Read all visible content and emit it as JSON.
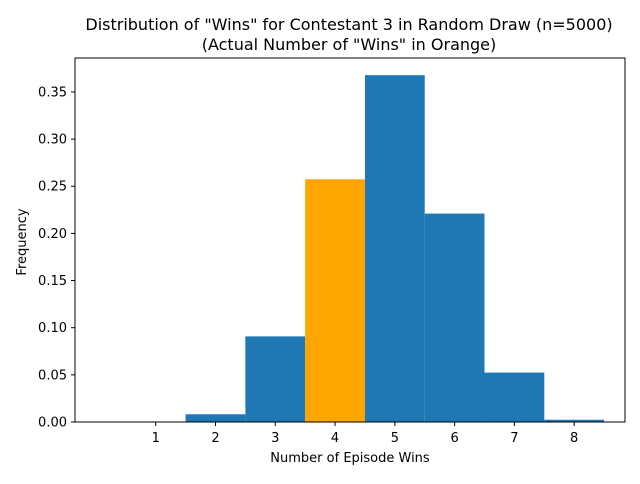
{
  "chart_data": {
    "type": "bar",
    "title_lines": [
      "Distribution of \"Wins\" for Contestant 3 in Random Draw (n=5000)",
      "(Actual Number of \"Wins\" in Orange)"
    ],
    "xlabel": "Number of Episode Wins",
    "ylabel": "Frequency",
    "categories": [
      1,
      2,
      3,
      4,
      5,
      6,
      7,
      8
    ],
    "values": [
      0.0,
      0.0082,
      0.0908,
      0.2574,
      0.3678,
      0.221,
      0.0524,
      0.0024
    ],
    "highlight_category": 4,
    "bar_width": 1.0,
    "xlim": [
      -0.35,
      8.85
    ],
    "ylim": [
      0,
      0.386
    ],
    "x_ticks": [
      "1",
      "2",
      "3",
      "4",
      "5",
      "6",
      "7",
      "8"
    ],
    "y_ticks": [
      "0.00",
      "0.05",
      "0.10",
      "0.15",
      "0.20",
      "0.25",
      "0.30",
      "0.35"
    ],
    "colors": {
      "bar": "#1f77b4",
      "highlight": "#ffa500"
    },
    "grid": false,
    "legend": "none"
  }
}
